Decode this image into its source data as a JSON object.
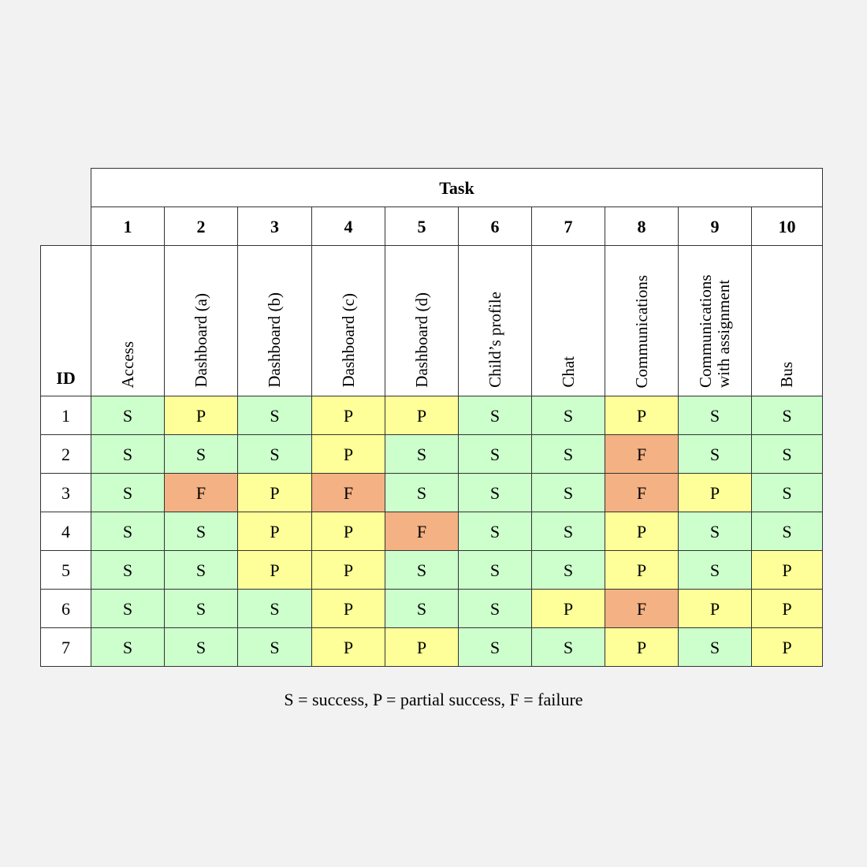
{
  "header": {
    "group_label": "Task",
    "id_label": "ID"
  },
  "tasks": [
    {
      "num": "1",
      "name": "Access"
    },
    {
      "num": "2",
      "name": "Dashboard (a)"
    },
    {
      "num": "3",
      "name": "Dashboard (b)"
    },
    {
      "num": "4",
      "name": "Dashboard (c)"
    },
    {
      "num": "5",
      "name": "Dashboard (d)"
    },
    {
      "num": "6",
      "name": "Child’s profile"
    },
    {
      "num": "7",
      "name": "Chat"
    },
    {
      "num": "8",
      "name": "Communications"
    },
    {
      "num": "9",
      "name": "Communications with assignment"
    },
    {
      "num": "10",
      "name": "Bus"
    }
  ],
  "rows": [
    {
      "id": "1",
      "results": [
        "S",
        "P",
        "S",
        "P",
        "P",
        "S",
        "S",
        "P",
        "S",
        "S"
      ]
    },
    {
      "id": "2",
      "results": [
        "S",
        "S",
        "S",
        "P",
        "S",
        "S",
        "S",
        "F",
        "S",
        "S"
      ]
    },
    {
      "id": "3",
      "results": [
        "S",
        "F",
        "P",
        "F",
        "S",
        "S",
        "S",
        "F",
        "P",
        "S"
      ]
    },
    {
      "id": "4",
      "results": [
        "S",
        "S",
        "P",
        "P",
        "F",
        "S",
        "S",
        "P",
        "S",
        "S"
      ]
    },
    {
      "id": "5",
      "results": [
        "S",
        "S",
        "P",
        "P",
        "S",
        "S",
        "S",
        "P",
        "S",
        "P"
      ]
    },
    {
      "id": "6",
      "results": [
        "S",
        "S",
        "S",
        "P",
        "S",
        "S",
        "P",
        "F",
        "P",
        "P"
      ]
    },
    {
      "id": "7",
      "results": [
        "S",
        "S",
        "S",
        "P",
        "P",
        "S",
        "S",
        "P",
        "S",
        "P"
      ]
    }
  ],
  "colors": {
    "S": "#ccffcc",
    "P": "#ffff99",
    "F": "#f4b183"
  },
  "legend": "S = success, P = partial success, F = failure"
}
